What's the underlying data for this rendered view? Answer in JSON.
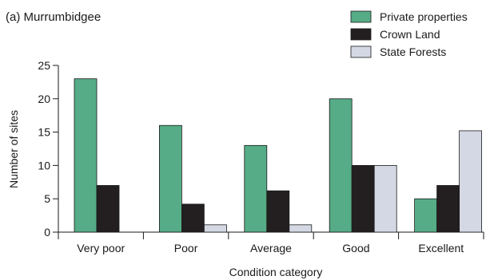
{
  "chart_data": {
    "type": "bar",
    "title": "(a) Murrumbidgee",
    "xlabel": "Condition category",
    "ylabel": "Number of sites",
    "categories": [
      "Very poor",
      "Poor",
      "Average",
      "Good",
      "Excellent"
    ],
    "series": [
      {
        "name": "Private properties",
        "color": "#55ac86",
        "values": [
          23,
          16,
          13,
          20,
          5
        ]
      },
      {
        "name": "Crown Land",
        "color": "#231f20",
        "values": [
          7,
          4.2,
          6.2,
          10,
          7
        ]
      },
      {
        "name": "State Forests",
        "color": "#d3d8e4",
        "values": [
          0,
          1.1,
          1.1,
          10,
          15.2
        ]
      }
    ],
    "ylim": [
      0,
      25
    ],
    "yticks": [
      0,
      5,
      10,
      15,
      20,
      25
    ],
    "grid": false,
    "legend_position": "top-right"
  }
}
